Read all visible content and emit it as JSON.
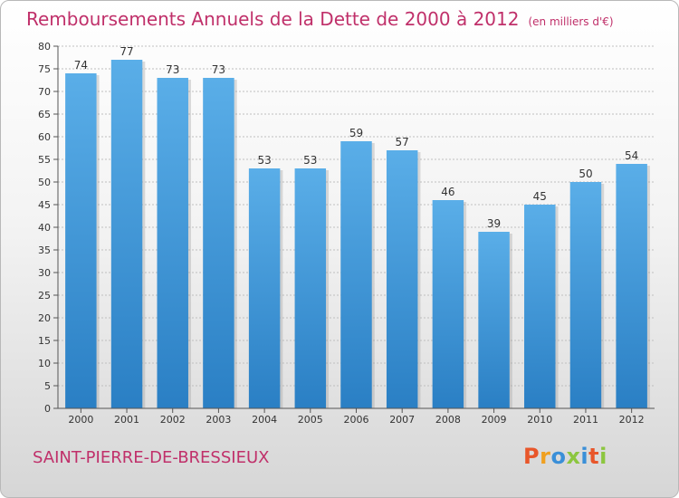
{
  "header": {
    "title": "Remboursements Annuels de la Dette de 2000 à 2012",
    "subtitle": "(en milliers d'€)"
  },
  "footer": {
    "commune": "SAINT-PIERRE-DE-BRESSIEUX",
    "logo": [
      "P",
      "r",
      "o",
      "x",
      "i",
      "t",
      "i"
    ],
    "logo_colors": [
      "#e8562a",
      "#f0a020",
      "#3a8fd8",
      "#8cc63f",
      "#3a8fd8",
      "#e8562a",
      "#8cc63f"
    ]
  },
  "chart_data": {
    "type": "bar",
    "categories": [
      "2000",
      "2001",
      "2002",
      "2003",
      "2004",
      "2005",
      "2006",
      "2007",
      "2008",
      "2009",
      "2010",
      "2011",
      "2012"
    ],
    "values": [
      74,
      77,
      73,
      73,
      53,
      53,
      59,
      57,
      46,
      39,
      45,
      50,
      54
    ],
    "title": "Remboursements Annuels de la Dette de 2000 à 2012",
    "subtitle": "(en milliers d'€)",
    "ylim": [
      0,
      80
    ],
    "yticks": [
      0,
      5,
      10,
      15,
      20,
      25,
      30,
      35,
      40,
      45,
      50,
      55,
      60,
      65,
      70,
      75,
      80
    ],
    "grid": true,
    "bar_color_top": "#5aaee8",
    "bar_color_bottom": "#2a7fc4",
    "title_color": "#c0306a"
  }
}
